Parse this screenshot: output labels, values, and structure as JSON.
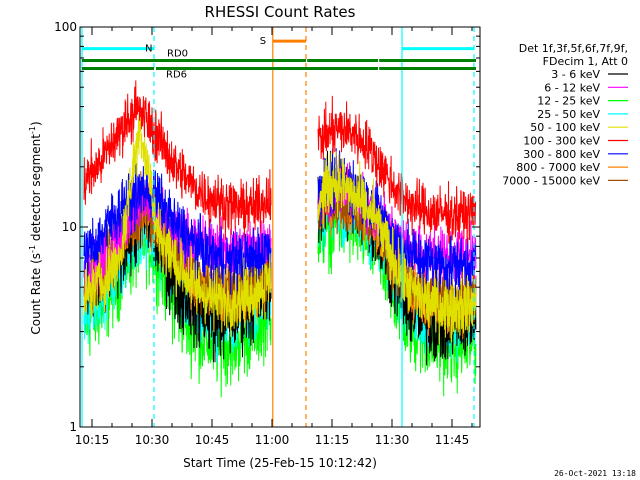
{
  "chart_data": {
    "type": "line",
    "title": "RHESSI Count Rates",
    "xlabel": "Start Time (25-Feb-15 10:12:42)",
    "ylabel_main": "Count Rate (s",
    "ylabel_sup1": "-1",
    "ylabel_mid": " detector segment",
    "ylabel_sup2": "-1",
    "ylabel_end": ")",
    "timestamp": "26-Oct-2021 13:18",
    "x_range_min": [
      612,
      712
    ],
    "y_log": true,
    "ylim": [
      1,
      100
    ],
    "x_ticks": [
      {
        "label": "10:15",
        "min": 615
      },
      {
        "label": "10:30",
        "min": 630
      },
      {
        "label": "10:45",
        "min": 645
      },
      {
        "label": "11:00",
        "min": 660
      },
      {
        "label": "11:15",
        "min": 675
      },
      {
        "label": "11:30",
        "min": 690
      },
      {
        "label": "11:45",
        "min": 705
      }
    ],
    "y_ticks": [
      {
        "label": "1",
        "value": 1
      },
      {
        "label": "10",
        "value": 10
      },
      {
        "label": "100",
        "value": 100
      }
    ],
    "legend": {
      "header": [
        "Det 1f,3f,5f,6f,7f,9f,",
        "FDecim 1, Att 0"
      ],
      "entries": [
        {
          "label": "3 - 6 keV",
          "color": "#000000"
        },
        {
          "label": "6 - 12 keV",
          "color": "#ff00ff"
        },
        {
          "label": "12 - 25 keV",
          "color": "#00ff00"
        },
        {
          "label": "25 - 50 keV",
          "color": "#00ffff"
        },
        {
          "label": "50 - 100 keV",
          "color": "#e0e000"
        },
        {
          "label": "100 - 300 keV",
          "color": "#ff0000"
        },
        {
          "label": "300 - 800 keV",
          "color": "#0000ff"
        },
        {
          "label": "800 - 7000 keV",
          "color": "#ff8000"
        },
        {
          "label": "7000 - 15000 keV",
          "color": "#a05000"
        }
      ]
    },
    "segments": [
      {
        "start": 613,
        "end": 659.8
      },
      {
        "start": 671.5,
        "end": 711
      }
    ],
    "gap_markers": [
      {
        "min": 612.5,
        "color": "#00ffff",
        "style": "solid"
      },
      {
        "min": 630.5,
        "color": "#00ffff",
        "style": "dashed"
      },
      {
        "min": 660.2,
        "color": "#ff8000",
        "style": "solid"
      },
      {
        "min": 668.5,
        "color": "#ff8000",
        "style": "dashed"
      },
      {
        "min": 692.5,
        "color": "#00ffff",
        "style": "solid"
      },
      {
        "min": 710.5,
        "color": "#00ffff",
        "style": "dashed"
      }
    ],
    "flag_bars": [
      {
        "start": 612.5,
        "end": 630.5,
        "value": 78,
        "color": "#00ffff",
        "label": "N"
      },
      {
        "start": 692.5,
        "end": 710.5,
        "value": 78,
        "color": "#00ffff",
        "label": ""
      },
      {
        "start": 660.2,
        "end": 668.5,
        "value": 85,
        "color": "#ff8000",
        "label": "S"
      },
      {
        "start": 612.5,
        "end": 668.5,
        "value": 68,
        "color": "#008000",
        "label": "RD0"
      },
      {
        "start": 668.8,
        "end": 686.5,
        "value": 68,
        "color": "#008000",
        "label": ""
      },
      {
        "start": 686.8,
        "end": 711,
        "value": 68,
        "color": "#008000",
        "label": ""
      },
      {
        "start": 612.5,
        "end": 630.5,
        "value": 62,
        "color": "#008000",
        "label": ""
      },
      {
        "start": 631,
        "end": 686.5,
        "value": 62,
        "color": "#008000",
        "label": "RD6"
      },
      {
        "start": 686.8,
        "end": 711,
        "value": 62,
        "color": "#008000",
        "label": ""
      }
    ],
    "series": [
      {
        "name": "3 - 6 keV",
        "color": "#000000",
        "noise": 0.12,
        "points": [
          [
            613,
            4.5
          ],
          [
            618,
            5.5
          ],
          [
            623,
            8
          ],
          [
            628,
            11
          ],
          [
            631,
            9
          ],
          [
            636,
            5
          ],
          [
            641,
            4
          ],
          [
            646,
            3.4
          ],
          [
            651,
            3.6
          ],
          [
            656,
            4.3
          ],
          [
            659.8,
            5.2
          ],
          [
            671.5,
            13
          ],
          [
            676,
            15
          ],
          [
            681,
            13
          ],
          [
            686,
            10
          ],
          [
            690,
            6
          ],
          [
            694,
            4
          ],
          [
            698,
            3.4
          ],
          [
            703,
            3.2
          ],
          [
            708,
            3.4
          ],
          [
            711,
            3.6
          ]
        ]
      },
      {
        "name": "6 - 12 keV",
        "color": "#ff00ff",
        "noise": 0.08,
        "points": [
          [
            613,
            5.5
          ],
          [
            618,
            7
          ],
          [
            623,
            10
          ],
          [
            628,
            14
          ],
          [
            631,
            12
          ],
          [
            636,
            9.5
          ],
          [
            641,
            8.5
          ],
          [
            646,
            8
          ],
          [
            651,
            7.8
          ],
          [
            656,
            8
          ],
          [
            659.8,
            8.5
          ],
          [
            671.5,
            14
          ],
          [
            676,
            16
          ],
          [
            681,
            14
          ],
          [
            686,
            12
          ],
          [
            690,
            9.5
          ],
          [
            694,
            8
          ],
          [
            698,
            7.5
          ],
          [
            703,
            7.3
          ],
          [
            708,
            7.3
          ],
          [
            711,
            7.4
          ]
        ]
      },
      {
        "name": "12 - 25 keV",
        "color": "#00ff00",
        "noise": 0.13,
        "points": [
          [
            613,
            3.3
          ],
          [
            618,
            4.2
          ],
          [
            623,
            6.5
          ],
          [
            628,
            9
          ],
          [
            631,
            7.5
          ],
          [
            636,
            4
          ],
          [
            641,
            3
          ],
          [
            646,
            2.6
          ],
          [
            651,
            2.7
          ],
          [
            656,
            3.2
          ],
          [
            659.8,
            4
          ],
          [
            671.5,
            9.5
          ],
          [
            676,
            11
          ],
          [
            681,
            10
          ],
          [
            686,
            8
          ],
          [
            690,
            5
          ],
          [
            694,
            3.3
          ],
          [
            698,
            2.8
          ],
          [
            703,
            2.6
          ],
          [
            708,
            2.6
          ],
          [
            711,
            2.7
          ]
        ]
      },
      {
        "name": "25 - 50 keV",
        "color": "#00ffff",
        "noise": 0.1,
        "points": [
          [
            613,
            3.8
          ],
          [
            618,
            4.8
          ],
          [
            623,
            7
          ],
          [
            628,
            10
          ],
          [
            631,
            8.5
          ],
          [
            636,
            5
          ],
          [
            641,
            3.8
          ],
          [
            646,
            3.3
          ],
          [
            651,
            3.4
          ],
          [
            656,
            3.9
          ],
          [
            659.8,
            4.6
          ],
          [
            671.5,
            11
          ],
          [
            676,
            12.5
          ],
          [
            681,
            11
          ],
          [
            686,
            9
          ],
          [
            690,
            6
          ],
          [
            694,
            4
          ],
          [
            698,
            3.4
          ],
          [
            703,
            3.3
          ],
          [
            708,
            3.3
          ],
          [
            711,
            3.4
          ]
        ]
      },
      {
        "name": "50 - 100 keV",
        "color": "#e0e000",
        "noise": 0.09,
        "points": [
          [
            613,
            4.5
          ],
          [
            618,
            5.5
          ],
          [
            622,
            7
          ],
          [
            625,
            18
          ],
          [
            627,
            32
          ],
          [
            629,
            20
          ],
          [
            631,
            10
          ],
          [
            636,
            6.5
          ],
          [
            641,
            5
          ],
          [
            646,
            4.3
          ],
          [
            651,
            4.3
          ],
          [
            656,
            4.8
          ],
          [
            659.8,
            5.5
          ],
          [
            671.5,
            13
          ],
          [
            674,
            16
          ],
          [
            676,
            17
          ],
          [
            681,
            14
          ],
          [
            686,
            11
          ],
          [
            690,
            7
          ],
          [
            694,
            5
          ],
          [
            698,
            4.3
          ],
          [
            703,
            4
          ],
          [
            708,
            4
          ],
          [
            711,
            4.1
          ]
        ]
      },
      {
        "name": "100 - 300 keV",
        "color": "#ff0000",
        "noise": 0.08,
        "points": [
          [
            613,
            17
          ],
          [
            617,
            21
          ],
          [
            621,
            28
          ],
          [
            624,
            35
          ],
          [
            626,
            39
          ],
          [
            628,
            36
          ],
          [
            631,
            29
          ],
          [
            636,
            20
          ],
          [
            641,
            15.5
          ],
          [
            646,
            13.5
          ],
          [
            651,
            12.5
          ],
          [
            656,
            12.5
          ],
          [
            659.8,
            14.5
          ],
          [
            671.5,
            27
          ],
          [
            676,
            31
          ],
          [
            680,
            30
          ],
          [
            684,
            25
          ],
          [
            688,
            19
          ],
          [
            692,
            14.5
          ],
          [
            696,
            12.5
          ],
          [
            700,
            11.8
          ],
          [
            705,
            11.5
          ],
          [
            708,
            11.5
          ],
          [
            711,
            11.8
          ]
        ]
      },
      {
        "name": "300 - 800 keV",
        "color": "#0000ff",
        "noise": 0.09,
        "points": [
          [
            613,
            7
          ],
          [
            618,
            9.5
          ],
          [
            623,
            13
          ],
          [
            628,
            15.5
          ],
          [
            631,
            14
          ],
          [
            636,
            10
          ],
          [
            641,
            8
          ],
          [
            646,
            7
          ],
          [
            651,
            6.7
          ],
          [
            656,
            7
          ],
          [
            659.8,
            8
          ],
          [
            671.5,
            15
          ],
          [
            676,
            17
          ],
          [
            681,
            15.5
          ],
          [
            686,
            12
          ],
          [
            690,
            9
          ],
          [
            694,
            7.5
          ],
          [
            698,
            6.8
          ],
          [
            703,
            6.5
          ],
          [
            708,
            6.5
          ],
          [
            711,
            6.6
          ]
        ]
      },
      {
        "name": "800 - 7000 keV",
        "color": "#ff8000",
        "noise": 0.09,
        "points": [
          [
            613,
            5
          ],
          [
            618,
            6.5
          ],
          [
            623,
            9
          ],
          [
            628,
            12
          ],
          [
            631,
            10.5
          ],
          [
            636,
            7.5
          ],
          [
            641,
            5.5
          ],
          [
            646,
            4.8
          ],
          [
            651,
            4.6
          ],
          [
            656,
            5
          ],
          [
            659.8,
            5.8
          ],
          [
            671.5,
            12
          ],
          [
            676,
            14
          ],
          [
            681,
            12.5
          ],
          [
            686,
            10
          ],
          [
            690,
            7
          ],
          [
            694,
            5
          ],
          [
            698,
            4.4
          ],
          [
            703,
            4.2
          ],
          [
            708,
            4.2
          ],
          [
            711,
            4.3
          ]
        ]
      },
      {
        "name": "7000 - 15000 keV",
        "color": "#a05000",
        "noise": 0.09,
        "points": [
          [
            613,
            5.2
          ],
          [
            618,
            6.7
          ],
          [
            623,
            9.3
          ],
          [
            628,
            12.3
          ],
          [
            631,
            10.7
          ],
          [
            636,
            7.7
          ],
          [
            641,
            5.7
          ],
          [
            646,
            5
          ],
          [
            651,
            4.8
          ],
          [
            656,
            5.2
          ],
          [
            659.8,
            6
          ],
          [
            671.5,
            12.3
          ],
          [
            676,
            14.3
          ],
          [
            681,
            12.8
          ],
          [
            686,
            10.2
          ],
          [
            690,
            7.2
          ],
          [
            694,
            5.2
          ],
          [
            698,
            4.6
          ],
          [
            703,
            4.4
          ],
          [
            708,
            4.4
          ],
          [
            711,
            4.5
          ]
        ]
      }
    ]
  }
}
